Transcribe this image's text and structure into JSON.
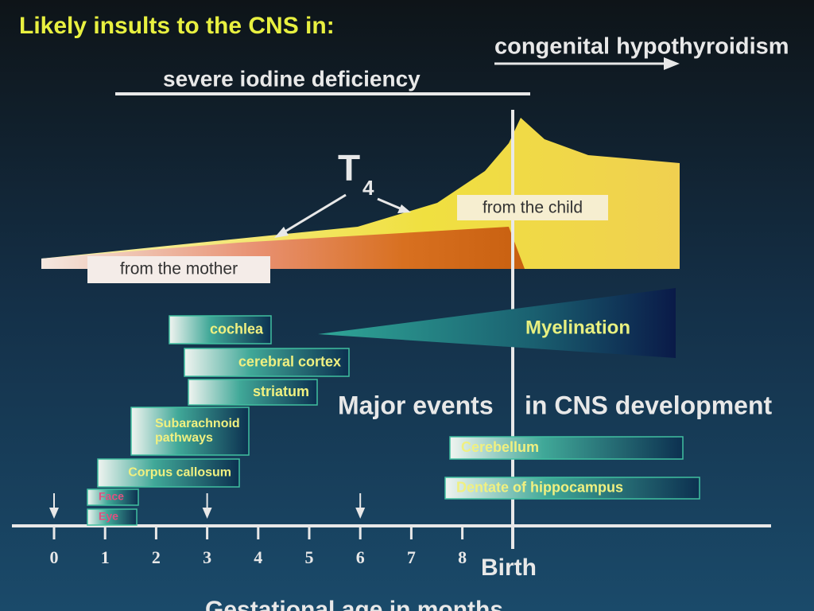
{
  "header": {
    "title": "Likely insults to the CNS in:"
  },
  "insults": {
    "iodine": "severe iodine deficiency",
    "hypothyroidism": "congenital hypothyroidism"
  },
  "t4": {
    "label": "T",
    "subscript": "4",
    "child": "from the child",
    "mother": "from the mother"
  },
  "events": {
    "title_left": "Major events",
    "title_right": "in CNS development",
    "myelination": "Myelination",
    "structures": [
      {
        "lines": [
          "cochlea"
        ]
      },
      {
        "lines": [
          "cerebral cortex"
        ]
      },
      {
        "lines": [
          "striatum"
        ]
      },
      {
        "lines": [
          "Subarachnoid",
          "pathways"
        ]
      },
      {
        "lines": [
          "Corpus callosum"
        ]
      },
      {
        "lines": [
          "Face"
        ]
      },
      {
        "lines": [
          "Eye"
        ]
      },
      {
        "lines": [
          "Cerebellum"
        ]
      },
      {
        "lines": [
          "Dentate of hippocampus"
        ]
      }
    ]
  },
  "axis": {
    "ticks": [
      0,
      1,
      2,
      3,
      4,
      5,
      6,
      7,
      8
    ],
    "end": "Birth",
    "label": "Gestational age in months"
  }
}
